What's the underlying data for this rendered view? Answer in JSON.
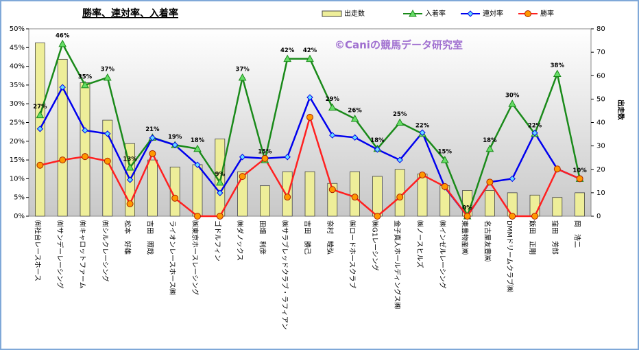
{
  "chart_data": {
    "type": "combo",
    "title": "勝率、連対率、入着率",
    "annotation": "©Caniの競馬データ研究室",
    "y2_label": "出走数",
    "legend": "top-right",
    "categories": [
      "㈲社台レースホース",
      "㈲サンデーレーシング",
      "㈲キャロットファーム",
      "㈲シルクレーシング",
      "松本　好雄",
      "吉田　照哉",
      "ライオンレースホース㈱",
      "㈱東京ホースレーシング",
      "ゴドルフィン",
      "㈱ダノックス",
      "田畑　利彦",
      "㈱サラブレッドクラブ・ラフィアン",
      "吉田　勝己",
      "奈村　睦弘",
      "㈱ロードホースクラブ",
      "㈱G1レーシング",
      "金子真人ホールディングス㈱",
      "㈱ノースヒルズ",
      "㈱インゼルレーシング",
      "東豊物産㈱",
      "名古屋友豊㈱",
      "DMMドリームクラブ㈱",
      "飯田　正剛",
      "窪田　芳郎",
      "岡　浩二"
    ],
    "series": [
      {
        "name": "出走数",
        "kind": "bar",
        "axis": "y2",
        "color": "#eeee99",
        "values": [
          74,
          67,
          57,
          41,
          31,
          24,
          21,
          22,
          33,
          19,
          13,
          19,
          19,
          14,
          19,
          17,
          20,
          18,
          13,
          11,
          11,
          10,
          9,
          8,
          10
        ]
      },
      {
        "name": "入着率",
        "kind": "line",
        "marker": "triangle",
        "color": "#1a8a1a",
        "values": [
          27,
          46,
          35,
          37,
          13,
          21,
          19,
          18,
          9,
          37,
          15,
          42,
          42,
          29,
          26,
          18,
          25,
          22,
          15,
          0,
          18,
          30,
          22,
          38,
          10
        ],
        "value_labels": [
          "27%",
          "46%",
          "35%",
          "37%",
          "13%",
          "21%",
          "19%",
          "18%",
          "9%",
          "37%",
          "15%",
          "42%",
          "42%",
          "29%",
          "26%",
          "18%",
          "25%",
          "22%",
          "15%",
          "0%",
          "18%",
          "30%",
          "22%",
          "38%",
          "10%"
        ]
      },
      {
        "name": "連対率",
        "kind": "line",
        "marker": "diamond",
        "color": "#0000ee",
        "values": [
          23.3,
          34.4,
          22.9,
          22,
          9.7,
          20.9,
          19,
          13.7,
          6.2,
          15.8,
          15.4,
          15.8,
          31.7,
          21.6,
          21,
          17.8,
          15,
          22.3,
          7.7,
          0,
          9.1,
          10,
          22.2,
          12.6,
          10
        ]
      },
      {
        "name": "勝率",
        "kind": "line",
        "marker": "circle",
        "color": "#ff2020",
        "values": [
          13.6,
          15,
          15.9,
          14.7,
          3.3,
          16.7,
          4.8,
          0,
          0,
          10.6,
          15.4,
          5.1,
          26.4,
          7.1,
          5.1,
          0,
          5.1,
          11,
          7.9,
          0,
          9.1,
          0,
          0,
          12.6,
          10
        ]
      }
    ],
    "ylim": [
      0,
      50
    ],
    "yticks": [
      {
        "value": 0,
        "label": "0%"
      },
      {
        "value": 5,
        "label": "5%"
      },
      {
        "value": 10,
        "label": "10%"
      },
      {
        "value": 15,
        "label": "15%"
      },
      {
        "value": 20,
        "label": "20%"
      },
      {
        "value": 25,
        "label": "25%"
      },
      {
        "value": 30,
        "label": "30%"
      },
      {
        "value": 35,
        "label": "35%"
      },
      {
        "value": 40,
        "label": "40%"
      },
      {
        "value": 45,
        "label": "45%"
      },
      {
        "value": 50,
        "label": "50%"
      }
    ],
    "y2lim": [
      0,
      80
    ],
    "y2ticks": [
      0,
      10,
      20,
      30,
      40,
      50,
      60,
      70,
      80
    ]
  }
}
